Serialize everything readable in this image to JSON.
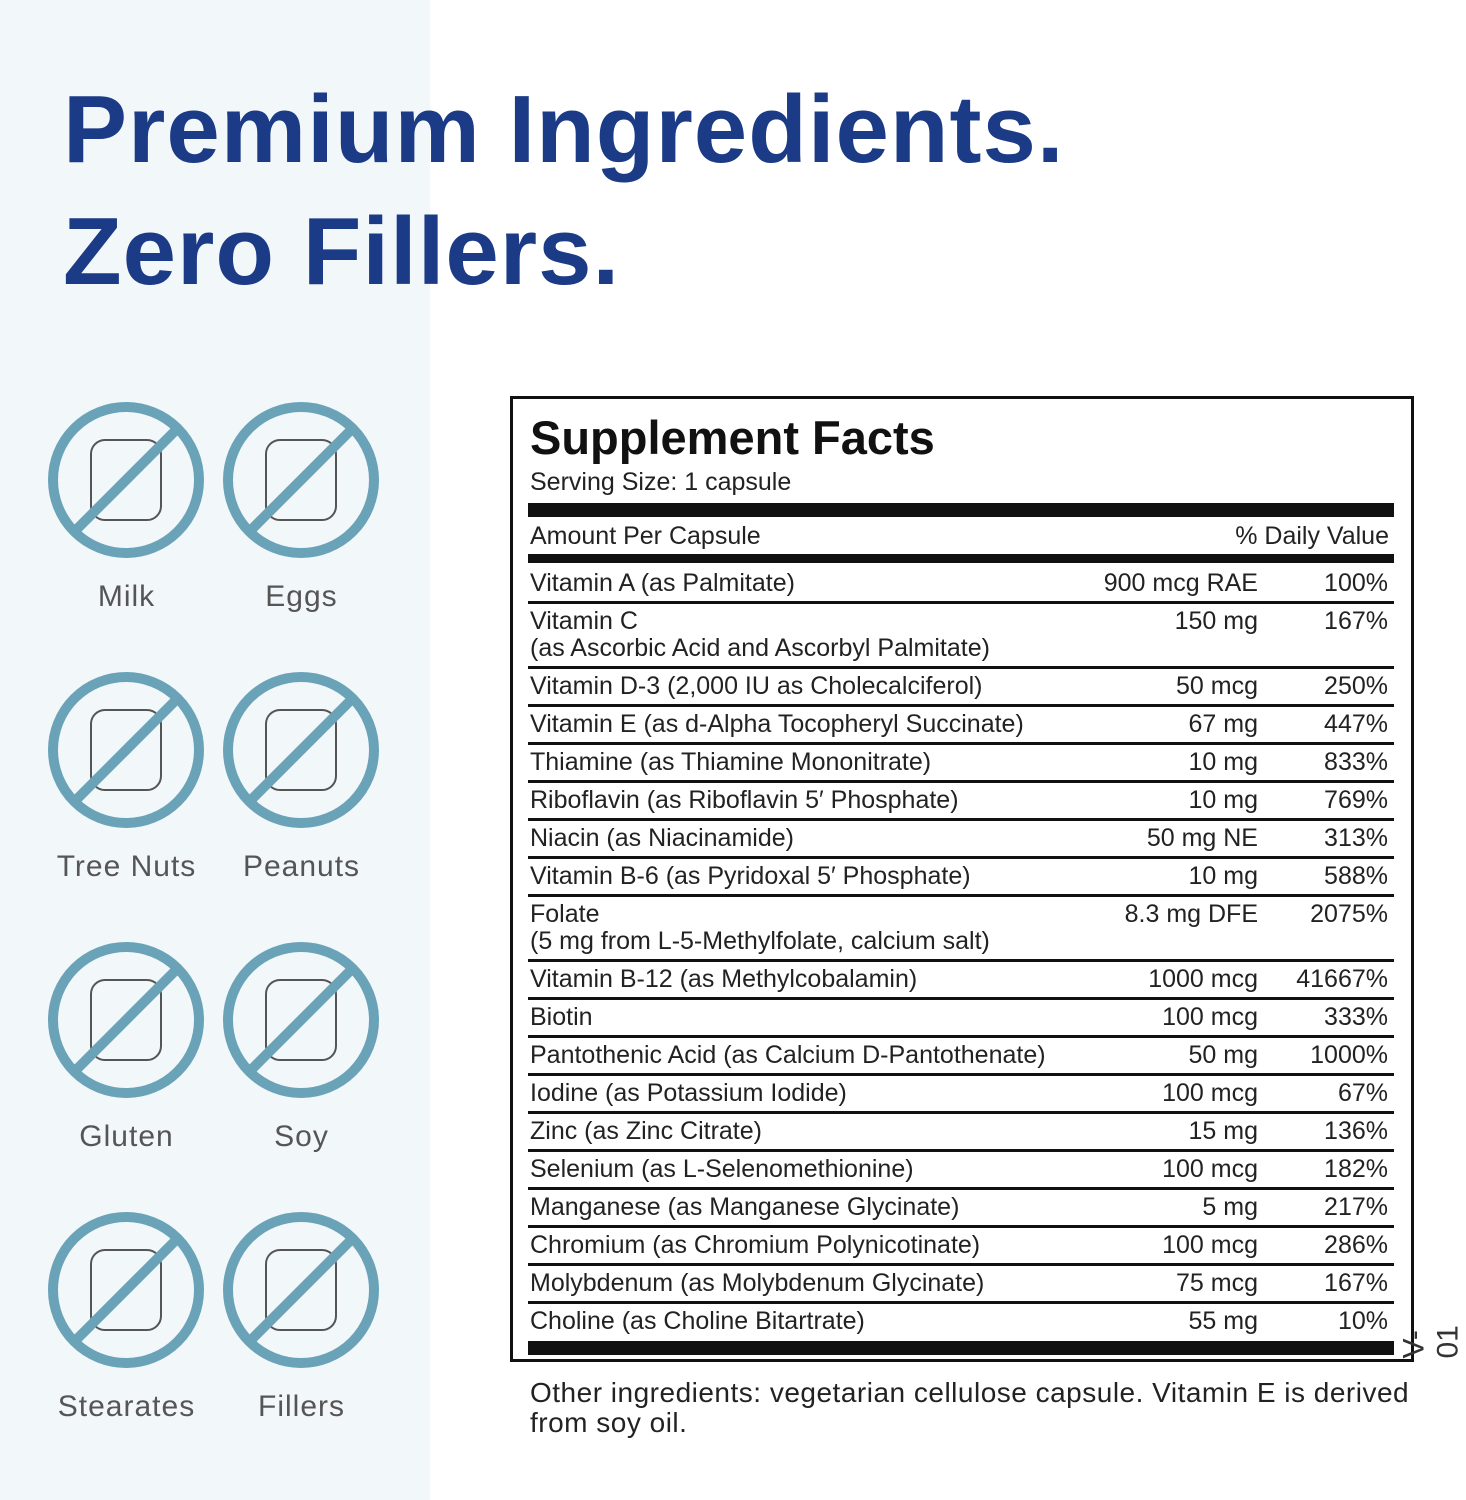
{
  "header": {
    "title_lines": [
      "Premium Ingredients.",
      "Zero Fillers."
    ]
  },
  "allergens": [
    "Milk",
    "Eggs",
    "Tree Nuts",
    "Peanuts",
    "Gluten",
    "Soy",
    "Stearates",
    "Fillers"
  ],
  "facts": {
    "title": "Supplement Facts",
    "serving_size": "Serving Size: 1 capsule",
    "amount_header": "Amount Per Capsule",
    "dv_header": "% Daily Value",
    "rows": [
      {
        "name": "Vitamin A (as Palmitate)",
        "amount": "900 mcg RAE",
        "dv": "100%"
      },
      {
        "name": "Vitamin C",
        "detail": "(as Ascorbic Acid and Ascorbyl Palmitate)",
        "amount": "150 mg",
        "dv": "167%"
      },
      {
        "name": "Vitamin D-3 (2,000 IU as Cholecalciferol)",
        "amount": "50 mcg",
        "dv": "250%"
      },
      {
        "name": "Vitamin E (as d-Alpha Tocopheryl Succinate)",
        "amount": "67 mg",
        "dv": "447%"
      },
      {
        "name": "Thiamine (as Thiamine Mononitrate)",
        "amount": "10 mg",
        "dv": "833%"
      },
      {
        "name": "Riboflavin (as Riboflavin 5′ Phosphate)",
        "amount": "10 mg",
        "dv": "769%"
      },
      {
        "name": "Niacin (as Niacinamide)",
        "amount": "50 mg NE",
        "dv": "313%"
      },
      {
        "name": "Vitamin B-6 (as Pyridoxal 5′ Phosphate)",
        "amount": "10 mg",
        "dv": "588%"
      },
      {
        "name": "Folate",
        "detail": "(5 mg from L-5-Methylfolate, calcium salt)",
        "amount": "8.3 mg DFE",
        "dv": "2075%"
      },
      {
        "name": "Vitamin B-12 (as Methylcobalamin)",
        "amount": "1000 mcg",
        "dv": "41667%"
      },
      {
        "name": "Biotin",
        "amount": "100 mcg",
        "dv": "333%"
      },
      {
        "name": "Pantothenic Acid (as Calcium D-Pantothenate)",
        "amount": "50 mg",
        "dv": "1000%"
      },
      {
        "name": "Iodine (as Potassium Iodide)",
        "amount": "100 mcg",
        "dv": "67%"
      },
      {
        "name": "Zinc (as Zinc Citrate)",
        "amount": "15 mg",
        "dv": "136%"
      },
      {
        "name": "Selenium (as L-Selenomethionine)",
        "amount": "100 mcg",
        "dv": "182%"
      },
      {
        "name": "Manganese (as Manganese Glycinate)",
        "amount": "5 mg",
        "dv": "217%"
      },
      {
        "name": "Chromium (as Chromium Polynicotinate)",
        "amount": "100 mcg",
        "dv": "286%"
      },
      {
        "name": "Molybdenum (as Molybdenum Glycinate)",
        "amount": "75 mcg",
        "dv": "167%"
      },
      {
        "name": "Choline (as Choline Bitartrate)",
        "amount": "55 mg",
        "dv": "10%"
      }
    ],
    "other_ingredients": "Other ingredients: vegetarian cellulose capsule. Vitamin E is derived from soy oil.",
    "code": "V-01"
  }
}
